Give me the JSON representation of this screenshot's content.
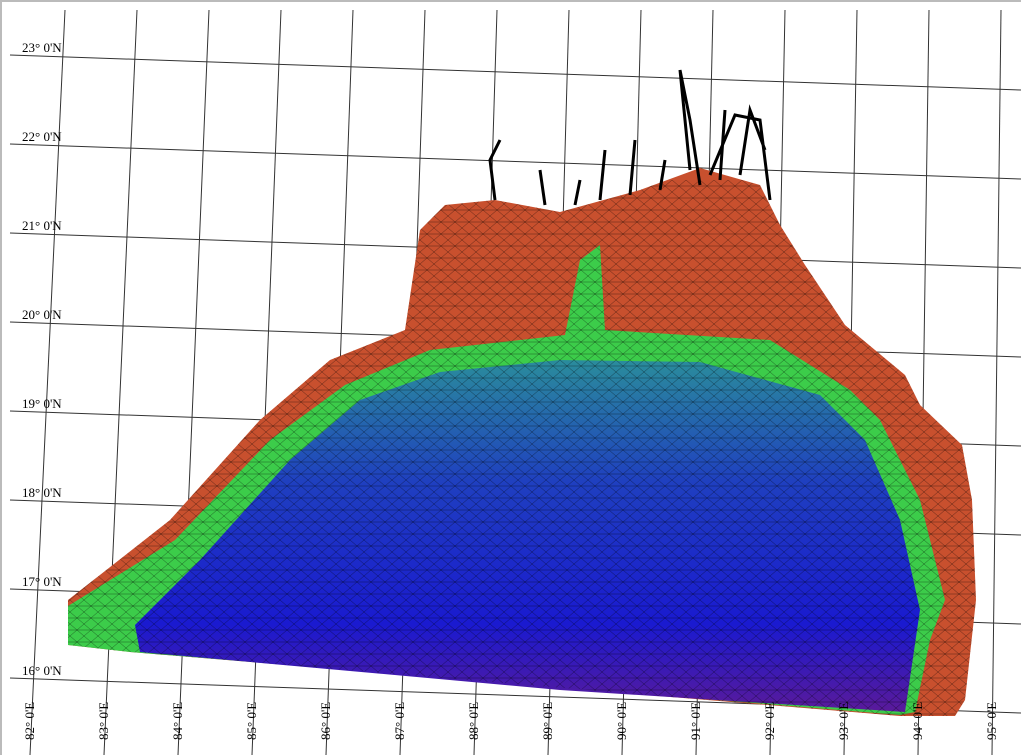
{
  "latitude_labels": [
    "23° 0'N",
    "22° 0'N",
    "21° 0'N",
    "20° 0'N",
    "19° 0'N",
    "18° 0'N",
    "17° 0'N",
    "16° 0'N"
  ],
  "longitude_labels": [
    "82° 0'E",
    "83° 0'E",
    "84° 0'E",
    "85° 0'E",
    "86° 0'E",
    "87° 0'E",
    "88° 0'E",
    "89° 0'E",
    "90° 0'E",
    "91° 0'E",
    "92° 0'E",
    "93° 0'E",
    "94° 0'E",
    "95° 0'E"
  ]
}
